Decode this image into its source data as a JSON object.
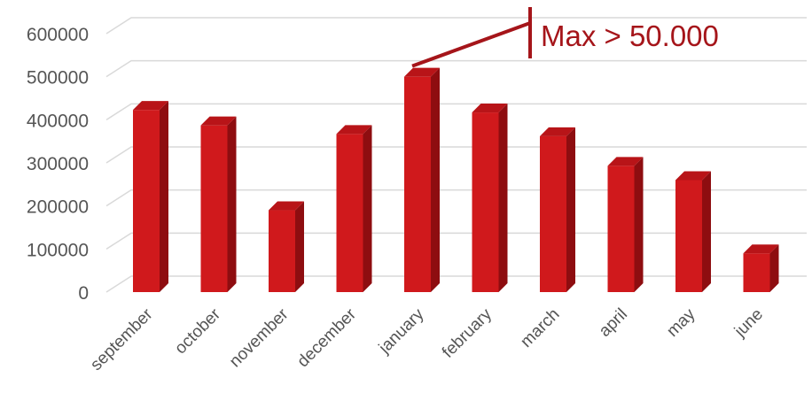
{
  "chart_data": {
    "type": "bar",
    "style": "3d-column",
    "categories": [
      "september",
      "october",
      "november",
      "december",
      "january",
      "february",
      "march",
      "april",
      "may",
      "june"
    ],
    "values": [
      423000,
      387000,
      190000,
      367000,
      500000,
      417000,
      362000,
      293000,
      260000,
      90000
    ],
    "ylim": [
      0,
      600000
    ],
    "yticks": [
      0,
      100000,
      200000,
      300000,
      400000,
      500000,
      600000
    ],
    "ytick_labels": [
      "0",
      "100000",
      "200000",
      "300000",
      "400000",
      "500000",
      "600000"
    ],
    "grid": true,
    "legend": "none",
    "annotation": {
      "text": "Max > 50.000",
      "target_category": "january"
    },
    "colors": {
      "bar_front": "#d0191c",
      "bar_side": "#8e0d10",
      "bar_top": "#b81418",
      "annotation": "#a5151a",
      "grid": "#d9d9d9"
    }
  }
}
